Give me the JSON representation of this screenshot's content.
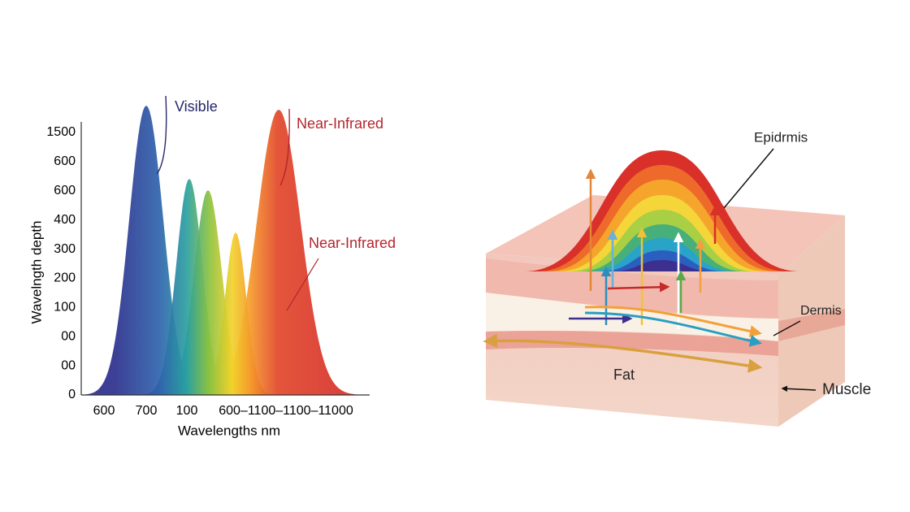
{
  "chart": {
    "y_axis_label": "Wavelngth depth",
    "x_axis_label": "Wavelengths nm",
    "y_tick_labels": [
      "1500",
      "600",
      "600",
      "400",
      "300",
      "200",
      "100",
      "00",
      "00",
      "0"
    ],
    "x_tick_labels": [
      "600",
      "700",
      "100",
      "600–1100–1100–11000"
    ],
    "annotations": [
      "Visible",
      "Near-Infrared",
      "Near-Infrared"
    ]
  },
  "diagram": {
    "labels": [
      "Epidrmis",
      "Dermis",
      "Fat",
      "Muscle"
    ]
  }
}
